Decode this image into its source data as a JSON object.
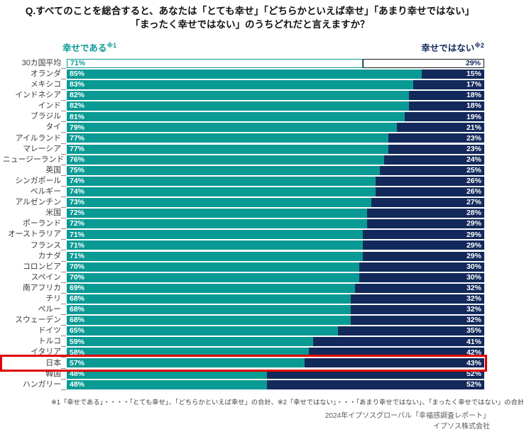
{
  "title": {
    "line1": "Q.すべてのことを総合すると、あなたは「とても幸せ」「どちらかといえば幸せ」「あまり幸せではない」",
    "line2": "「まったく幸せではない」のうちどれだと言えますか？"
  },
  "axis_headers": {
    "left_label": "幸せである",
    "left_note": "※1",
    "right_label": "幸せではない",
    "right_note": "※2"
  },
  "colors": {
    "happy_bar": "#0A9A94",
    "unhappy_bar": "#13295B",
    "highlight_box": "#E00000"
  },
  "chart_data": {
    "type": "bar",
    "orientation": "horizontal-stacked",
    "x_range": [
      0,
      100
    ],
    "unit": "%",
    "series_names": [
      "幸せである",
      "幸せではない"
    ],
    "rows": [
      {
        "label": "30カ国平均",
        "happy": 71,
        "unhappy": 29,
        "style": "outline"
      },
      {
        "label": "オランダ",
        "happy": 85,
        "unhappy": 15
      },
      {
        "label": "メキシコ",
        "happy": 83,
        "unhappy": 17
      },
      {
        "label": "インドネシア",
        "happy": 82,
        "unhappy": 18
      },
      {
        "label": "インド",
        "happy": 82,
        "unhappy": 18
      },
      {
        "label": "ブラジル",
        "happy": 81,
        "unhappy": 19
      },
      {
        "label": "タイ",
        "happy": 79,
        "unhappy": 21
      },
      {
        "label": "アイルランド",
        "happy": 77,
        "unhappy": 23
      },
      {
        "label": "マレーシア",
        "happy": 77,
        "unhappy": 23
      },
      {
        "label": "ニュージーランド",
        "happy": 76,
        "unhappy": 24
      },
      {
        "label": "英国",
        "happy": 75,
        "unhappy": 25
      },
      {
        "label": "シンガポール",
        "happy": 74,
        "unhappy": 26
      },
      {
        "label": "ベルギー",
        "happy": 74,
        "unhappy": 26
      },
      {
        "label": "アルゼンチン",
        "happy": 73,
        "unhappy": 27
      },
      {
        "label": "米国",
        "happy": 72,
        "unhappy": 28
      },
      {
        "label": "ポーランド",
        "happy": 72,
        "unhappy": 29
      },
      {
        "label": "オーストラリア",
        "happy": 71,
        "unhappy": 29
      },
      {
        "label": "フランス",
        "happy": 71,
        "unhappy": 29
      },
      {
        "label": "カナダ",
        "happy": 71,
        "unhappy": 29
      },
      {
        "label": "コロンビア",
        "happy": 70,
        "unhappy": 30
      },
      {
        "label": "スペイン",
        "happy": 70,
        "unhappy": 30
      },
      {
        "label": "南アフリカ",
        "happy": 69,
        "unhappy": 32
      },
      {
        "label": "チリ",
        "happy": 68,
        "unhappy": 32
      },
      {
        "label": "ペルー",
        "happy": 68,
        "unhappy": 32
      },
      {
        "label": "スウェーデン",
        "happy": 68,
        "unhappy": 32
      },
      {
        "label": "ドイツ",
        "happy": 65,
        "unhappy": 35
      },
      {
        "label": "トルコ",
        "happy": 59,
        "unhappy": 41
      },
      {
        "label": "イタリア",
        "happy": 58,
        "unhappy": 42
      },
      {
        "label": "日本",
        "happy": 57,
        "unhappy": 43,
        "highlight": true
      },
      {
        "label": "韓国",
        "happy": 48,
        "unhappy": 52
      },
      {
        "label": "ハンガリー",
        "happy": 48,
        "unhappy": 52
      }
    ]
  },
  "footnote": "※1「幸せである」・・・・「とても幸せ」、「どちらかといえば幸せ」の合計、※2「幸せではない」・・・「あまり幸せではない」、「まったく幸せではない」の合計",
  "source": {
    "line1": "2024年イプソスグローバル「幸福感調査レポート」",
    "line2": "イプソス株式会社"
  }
}
